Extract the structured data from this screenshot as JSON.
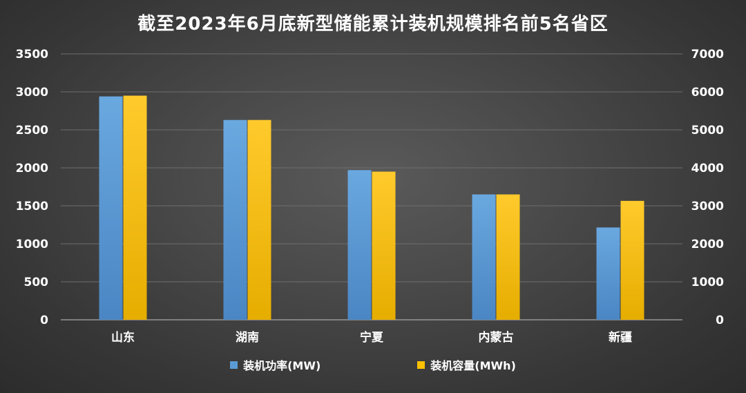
{
  "chart_data": {
    "type": "bar",
    "title": "截至2023年6月底新型储能累计装机规模排名前5名省区",
    "categories": [
      "山东",
      "湖南",
      "宁夏",
      "内蒙古",
      "新疆"
    ],
    "series": [
      {
        "name": "装机功率(MW)",
        "axis": "left",
        "color": "#5b9bd5",
        "values": [
          2940,
          2630,
          1970,
          1650,
          1215
        ]
      },
      {
        "name": "装机容量(MWh)",
        "axis": "right",
        "color": "#ffc000",
        "values": [
          5900,
          5260,
          3900,
          3300,
          3130
        ]
      }
    ],
    "y_left": {
      "range": [
        0,
        3500
      ],
      "ticks": [
        "0",
        "500",
        "1000",
        "1500",
        "2000",
        "2500",
        "3000",
        "3500"
      ]
    },
    "y_right": {
      "range": [
        0,
        7000
      ],
      "ticks": [
        "0",
        "1000",
        "2000",
        "3000",
        "4000",
        "5000",
        "6000",
        "7000"
      ]
    },
    "grid": true,
    "legend_position": "bottom"
  }
}
